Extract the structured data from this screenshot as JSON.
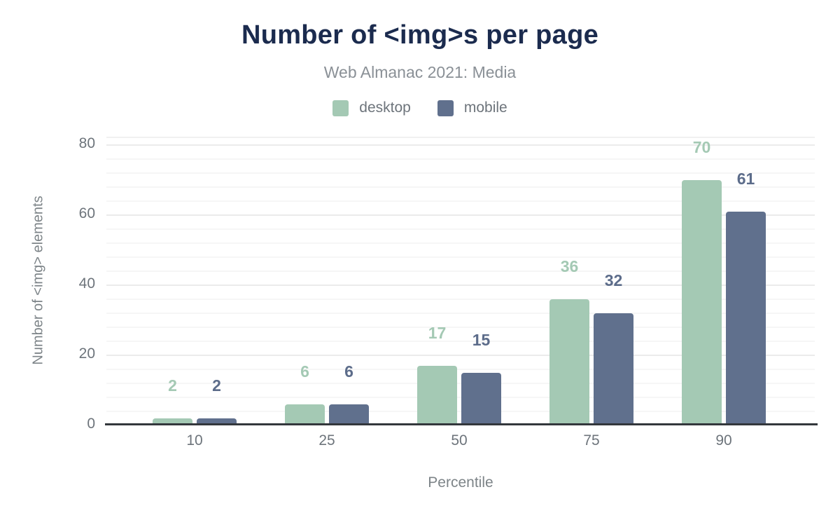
{
  "chart_data": {
    "type": "bar",
    "title": "Number of <img>s per page",
    "subtitle": "Web Almanac 2021: Media",
    "xlabel": "Percentile",
    "ylabel": "Number of <img> elements",
    "categories": [
      "10",
      "25",
      "50",
      "75",
      "90"
    ],
    "series": [
      {
        "name": "desktop",
        "color": "#a4c9b4",
        "label_color": "#a4c9b4",
        "values": [
          2,
          6,
          17,
          36,
          70
        ]
      },
      {
        "name": "mobile",
        "color": "#60708d",
        "label_color": "#5c6c8a",
        "values": [
          2,
          6,
          15,
          32,
          61
        ]
      }
    ],
    "ylim": [
      0,
      80
    ],
    "yticks": [
      0,
      20,
      40,
      60,
      80
    ],
    "minor_grid_step": 4,
    "grid": "horizontal",
    "legend_position": "top",
    "colors": {
      "title": "#1b2b4e",
      "subtitle": "#8a9096",
      "axis_text": "#6d747b",
      "axis_title": "#7d8488",
      "axis_line": "#33373c",
      "grid_major": "#ebebeb",
      "grid_minor": "#f6f6f6"
    }
  }
}
